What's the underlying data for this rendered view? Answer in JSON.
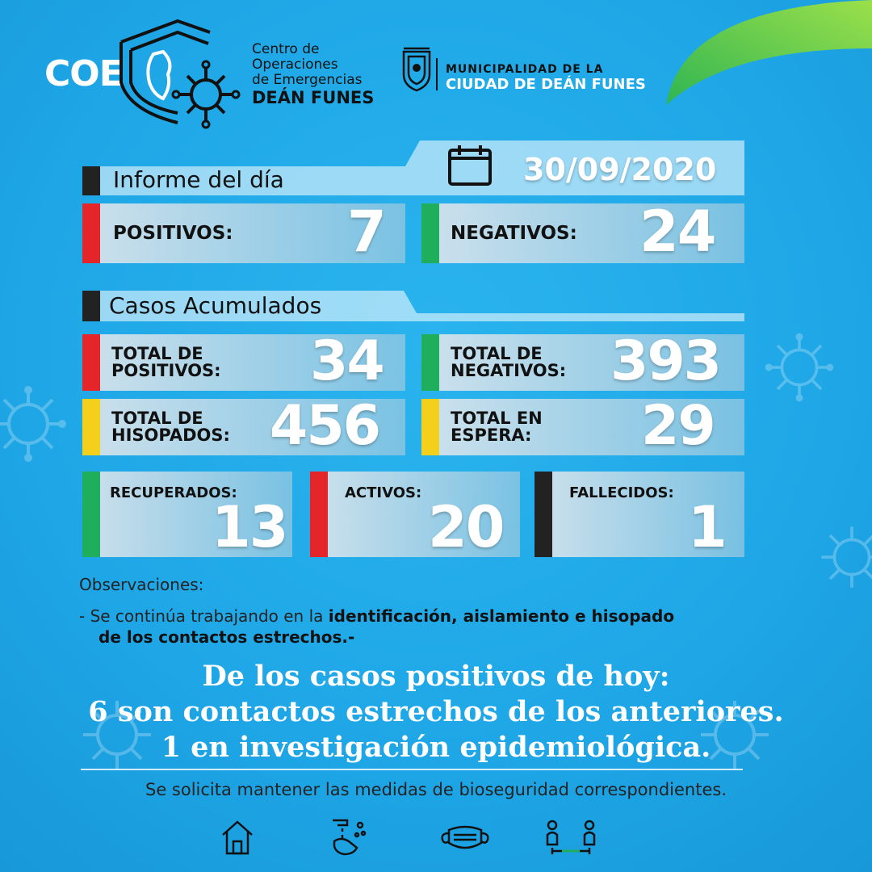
{
  "header": {
    "coe_logo": "COE",
    "coe_name_lines": [
      "Centro de",
      "Operaciones",
      "de Emergencias"
    ],
    "coe_city": "DEÁN FUNES",
    "muni_line1": "MUNICIPALIDAD DE LA",
    "muni_line2": "CIUDAD DE DEÁN FUNES"
  },
  "daily": {
    "title": "Informe del día",
    "date": "30/09/2020",
    "positivos_label": "POSITIVOS:",
    "positivos_value": "7",
    "negativos_label": "NEGATIVOS:",
    "negativos_value": "24"
  },
  "cumulative": {
    "title": "Casos Acumulados",
    "total_positivos_label": [
      "TOTAL DE",
      "POSITIVOS:"
    ],
    "total_positivos_value": "34",
    "total_negativos_label": [
      "TOTAL DE",
      "NEGATIVOS:"
    ],
    "total_negativos_value": "393",
    "total_hisopados_label": [
      "TOTAL DE",
      "HISOPADOS:"
    ],
    "total_hisopados_value": "456",
    "total_espera_label": [
      "TOTAL EN",
      "ESPERA:"
    ],
    "total_espera_value": "29",
    "recuperados_label": "RECUPERADOS:",
    "recuperados_value": "13",
    "activos_label": "ACTIVOS:",
    "activos_value": "20",
    "fallecidos_label": "FALLECIDOS:",
    "fallecidos_value": "1"
  },
  "observations": {
    "title": "Observaciones:",
    "line1_prefix": "- Se continúa trabajando en la ",
    "line1_bold": "identificación, aislamiento e hisopado",
    "line2_bold": "de los contactos estrechos.-"
  },
  "message": {
    "line1": "De los casos positivos de hoy:",
    "line2": "6 son contactos estrechos de los anteriores.",
    "line3": "1 en investigación epidemiológica."
  },
  "footer": {
    "text": "Se solicita mantener las medidas de bioseguridad correspondientes.",
    "icons": [
      "house-icon",
      "handwash-icon",
      "mask-icon",
      "distance-icon"
    ]
  },
  "colors": {
    "background": "#1ea6e6",
    "red": "#e4262b",
    "green": "#1fae5c",
    "yellow": "#f4cf1c",
    "black": "#222222",
    "leaf_green": "#6ccf3a"
  }
}
